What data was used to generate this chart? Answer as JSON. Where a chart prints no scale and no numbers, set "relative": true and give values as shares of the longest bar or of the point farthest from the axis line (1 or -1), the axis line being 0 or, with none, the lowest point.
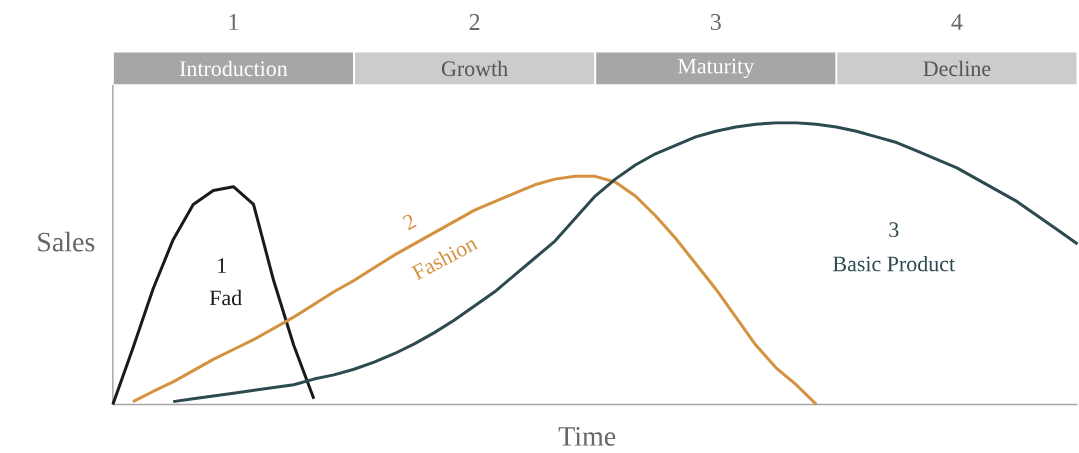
{
  "chart_data": {
    "type": "line",
    "relative": true,
    "xlabel": "Time",
    "ylabel": "Sales",
    "categories": [
      null,
      null,
      null,
      null,
      null,
      null,
      null,
      null,
      null,
      null,
      null,
      null,
      null,
      null,
      null,
      null,
      null,
      null,
      null,
      null,
      null,
      null,
      null,
      null,
      null,
      null,
      null,
      null,
      null,
      null,
      null,
      null,
      null,
      null,
      null,
      null,
      null,
      null,
      null,
      null,
      null,
      null,
      null,
      null,
      null,
      null,
      null,
      null,
      null
    ],
    "series": [
      {
        "name": "Fad",
        "color": "#1a1a1a",
        "values": [
          0,
          0.2,
          0.41,
          0.585,
          0.71,
          0.76,
          0.773,
          0.71,
          0.44,
          0.21,
          0.02,
          null,
          null,
          null,
          null,
          null,
          null,
          null,
          null,
          null,
          null,
          null,
          null,
          null,
          null,
          null,
          null,
          null,
          null,
          null,
          null,
          null,
          null,
          null,
          null,
          null,
          null,
          null,
          null,
          null,
          null,
          null,
          null,
          null,
          null,
          null,
          null,
          null,
          null
        ]
      },
      {
        "name": "Fashion",
        "color": "#d4913f",
        "values": [
          null,
          0.01,
          0.046,
          0.08,
          0.12,
          0.16,
          0.195,
          0.23,
          0.27,
          0.31,
          0.355,
          0.4,
          0.44,
          0.485,
          0.53,
          0.57,
          0.61,
          0.65,
          0.69,
          0.72,
          0.75,
          0.78,
          0.8,
          0.81,
          0.81,
          0.79,
          0.74,
          0.67,
          0.59,
          0.5,
          0.41,
          0.31,
          0.21,
          0.13,
          0.07,
          0,
          null,
          null,
          null,
          null,
          null,
          null,
          null,
          null,
          null,
          null,
          null,
          null,
          null
        ]
      },
      {
        "name": "Basic Product",
        "color": "#2c4a4f",
        "values": [
          null,
          null,
          null,
          0.01,
          0.02,
          0.03,
          0.04,
          0.05,
          0.06,
          0.07,
          0.09,
          0.105,
          0.125,
          0.15,
          0.18,
          0.215,
          0.255,
          0.3,
          0.35,
          0.4,
          0.46,
          0.52,
          0.58,
          0.66,
          0.74,
          0.8,
          0.85,
          0.89,
          0.92,
          0.95,
          0.97,
          0.985,
          0.995,
          1,
          1,
          0.995,
          0.985,
          0.97,
          0.95,
          0.93,
          0.9,
          0.87,
          0.84,
          0.8,
          0.76,
          0.72,
          0.67,
          0.62,
          0.57
        ]
      }
    ],
    "annotations": [
      "1",
      "Introduction",
      "2",
      "Growth",
      "3",
      "Maturity",
      "4",
      "Decline",
      "1",
      "2",
      "3"
    ]
  }
}
